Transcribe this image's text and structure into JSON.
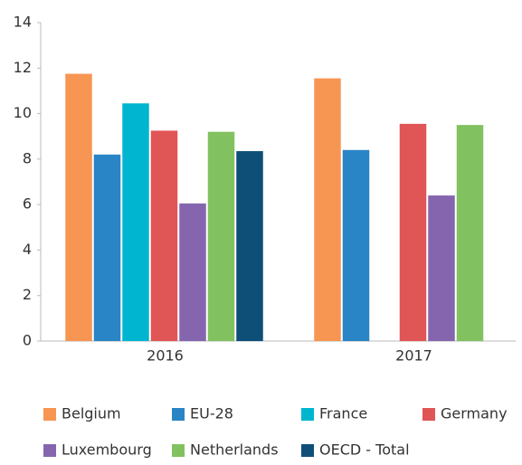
{
  "chart_data": {
    "type": "bar",
    "categories": [
      "2016",
      "2017"
    ],
    "series": [
      {
        "name": "Belgium",
        "color": "#f79552",
        "values": [
          11.75,
          11.55
        ]
      },
      {
        "name": "EU-28",
        "color": "#2a85c7",
        "values": [
          8.2,
          8.4
        ]
      },
      {
        "name": "France",
        "color": "#00b5cf",
        "values": [
          10.45,
          null
        ]
      },
      {
        "name": "Germany",
        "color": "#e05555",
        "values": [
          9.25,
          9.55
        ]
      },
      {
        "name": "Luxembourg",
        "color": "#8566ae",
        "values": [
          6.05,
          6.4
        ]
      },
      {
        "name": "Netherlands",
        "color": "#82c160",
        "values": [
          9.2,
          9.5
        ]
      },
      {
        "name": "OECD - Total",
        "color": "#0e4f78",
        "values": [
          8.35,
          null
        ]
      }
    ],
    "ylim": [
      0,
      14
    ],
    "yticks": [
      0,
      2,
      4,
      6,
      8,
      10,
      12,
      14
    ],
    "grid": false
  }
}
